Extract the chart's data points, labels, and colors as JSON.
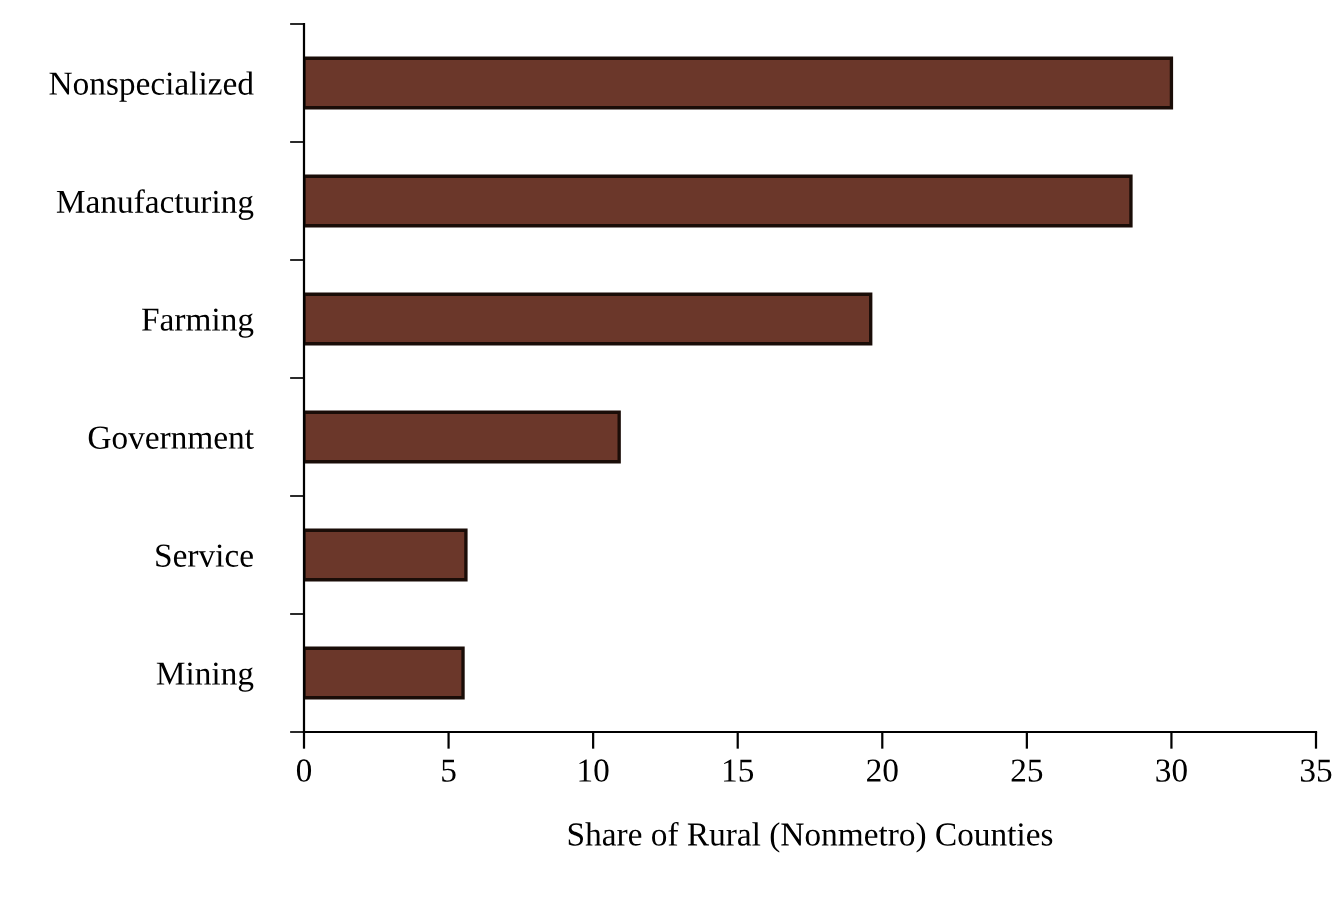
{
  "chart_data": {
    "type": "bar",
    "orientation": "horizontal",
    "xlabel": "Share of Rural (Nonmetro) Counties",
    "categories": [
      "Nonspecialized",
      "Manufacturing",
      "Farming",
      "Government",
      "Service",
      "Mining"
    ],
    "values": [
      30.0,
      28.6,
      19.6,
      10.9,
      5.6,
      5.5
    ],
    "color": "#6b372a",
    "xlim": [
      0,
      35
    ],
    "xticks": [
      0,
      5,
      10,
      15,
      20,
      25,
      30,
      35
    ],
    "grid": false,
    "legend": false
  }
}
